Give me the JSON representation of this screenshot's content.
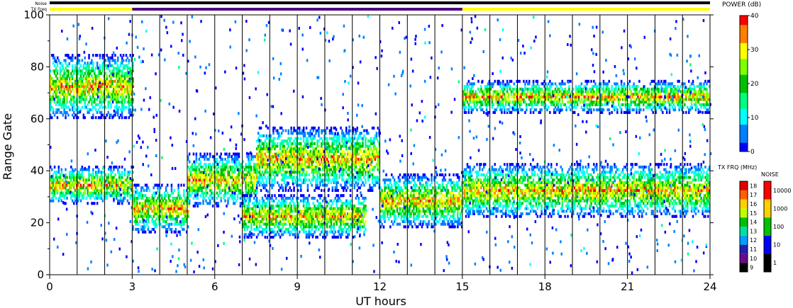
{
  "chart_data": {
    "type": "heatmap",
    "xlabel": "UT hours",
    "ylabel": "Range Gate",
    "xlim": [
      0,
      24
    ],
    "ylim": [
      0,
      100
    ],
    "x_ticks": [
      "0",
      "3",
      "6",
      "9",
      "12",
      "15",
      "18",
      "21",
      "24"
    ],
    "y_ticks": [
      "0",
      "20",
      "40",
      "60",
      "80",
      "100"
    ],
    "grid_verticals_hours": [
      1,
      2,
      3,
      4,
      5,
      6,
      7,
      8,
      9,
      10,
      11,
      12,
      13,
      14,
      15,
      16,
      17,
      18,
      19,
      20,
      21,
      22,
      23
    ],
    "top_bars": {
      "noise_label": "Noise",
      "txfreq_label": "TX Freq",
      "noise_color": "#000000",
      "txfreq_segments": [
        {
          "from": 0,
          "to": 3,
          "color": "#ffff00"
        },
        {
          "from": 3,
          "to": 15,
          "color": "#4b0082"
        },
        {
          "from": 15,
          "to": 24,
          "color": "#ffff00"
        }
      ]
    },
    "echo_bands": [
      {
        "from": 0.0,
        "to": 3.0,
        "center": 34,
        "width": 7
      },
      {
        "from": 3.0,
        "to": 5.0,
        "center": 25,
        "width": 9
      },
      {
        "from": 5.0,
        "to": 7.5,
        "center": 36,
        "width": 10
      },
      {
        "from": 7.5,
        "to": 12.0,
        "center": 44,
        "width": 12
      },
      {
        "from": 12.0,
        "to": 15.0,
        "center": 28,
        "width": 10
      },
      {
        "from": 15.0,
        "to": 24.0,
        "center": 32,
        "width": 10
      },
      {
        "from": 7.0,
        "to": 11.5,
        "center": 22,
        "width": 8
      },
      {
        "from": 0.0,
        "to": 3.0,
        "center": 72,
        "width": 12
      },
      {
        "from": 15.0,
        "to": 24.0,
        "center": 68,
        "width": 6
      }
    ],
    "power_scale": {
      "title": "POWER (dB)",
      "ticks": [
        "0",
        "10",
        "20",
        "30",
        "40"
      ],
      "range": [
        0,
        40
      ],
      "colors": [
        "#0000ff",
        "#0080ff",
        "#00ffff",
        "#00ff80",
        "#00c000",
        "#80ff00",
        "#ffff00",
        "#ff8000",
        "#ff0000"
      ]
    },
    "txfreq_scale": {
      "title": "TX FRQ (MHz)",
      "ticks": [
        "9",
        "10",
        "11",
        "12",
        "13",
        "14",
        "15",
        "16",
        "17",
        "18"
      ],
      "colors": [
        "#000000",
        "#6a0a8a",
        "#2020b0",
        "#00a0ff",
        "#00e0a0",
        "#00c000",
        "#c0ff00",
        "#ffd000",
        "#ff6000",
        "#e00000"
      ]
    },
    "noise_scale": {
      "title": "NOISE",
      "ticks": [
        "1",
        "10",
        "100",
        "1000",
        "10000"
      ],
      "colors": [
        "#000000",
        "#0000ff",
        "#00c000",
        "#ffd000",
        "#ff0000"
      ]
    }
  }
}
